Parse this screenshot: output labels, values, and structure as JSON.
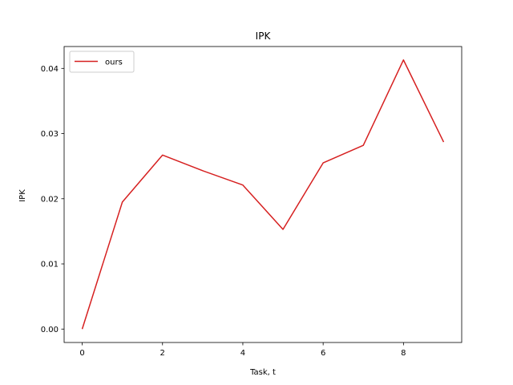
{
  "chart_data": {
    "type": "line",
    "title": "IPK",
    "xlabel": "Task, t",
    "ylabel": "IPK",
    "xlim": [
      -0.45,
      9.45
    ],
    "ylim": [
      -0.00206,
      0.04336
    ],
    "xticks": [
      0,
      2,
      4,
      6,
      8
    ],
    "xtick_labels": [
      "0",
      "2",
      "4",
      "6",
      "8"
    ],
    "yticks": [
      0.0,
      0.01,
      0.02,
      0.03,
      0.04
    ],
    "ytick_labels": [
      "0.00",
      "0.01",
      "0.02",
      "0.03",
      "0.04"
    ],
    "grid": false,
    "legend_position": "top-left",
    "series": [
      {
        "name": "ours",
        "color": "#d62020",
        "x": [
          0,
          1,
          2,
          3,
          4,
          5,
          6,
          7,
          8,
          9
        ],
        "y": [
          0.0,
          0.0195,
          0.0267,
          0.0243,
          0.0221,
          0.0153,
          0.0255,
          0.0282,
          0.0413,
          0.0287
        ]
      }
    ]
  }
}
